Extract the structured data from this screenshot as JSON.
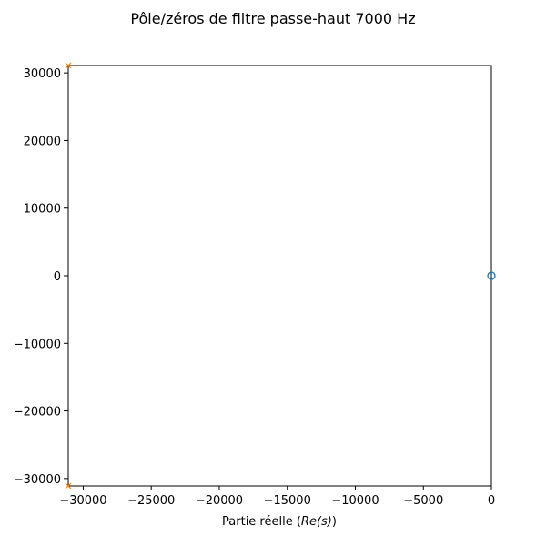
{
  "chart_data": {
    "type": "scatter",
    "title": "Pôle/zéros de filtre passe-haut 7000 Hz",
    "xlabel_text": "Partie réelle (",
    "xlabel_math": "Re(s)",
    "xlabel_close": ")",
    "ylabel": "",
    "xlim": [
      -31100,
      0
    ],
    "ylim": [
      -31100,
      31100
    ],
    "x_ticks": [
      -30000,
      -25000,
      -20000,
      -15000,
      -10000,
      -5000,
      0
    ],
    "x_tick_labels": [
      "−30000",
      "−25000",
      "−20000",
      "−15000",
      "−10000",
      "−5000",
      "0"
    ],
    "y_ticks": [
      30000,
      20000,
      10000,
      0,
      -10000,
      -20000,
      -30000
    ],
    "y_tick_labels": [
      "30000",
      "20000",
      "10000",
      "0",
      "−10000",
      "−20000",
      "−30000"
    ],
    "grid": false,
    "series": [
      {
        "marker": "circle-open",
        "color": "#1f77b4",
        "points": [
          {
            "x": 0,
            "y": 0
          },
          {
            "x": 0,
            "y": 0
          }
        ]
      },
      {
        "marker": "x",
        "color": "#ff7f0e",
        "points": [
          {
            "x": -31100,
            "y": 31100
          },
          {
            "x": -31100,
            "y": -31100
          }
        ]
      }
    ]
  }
}
